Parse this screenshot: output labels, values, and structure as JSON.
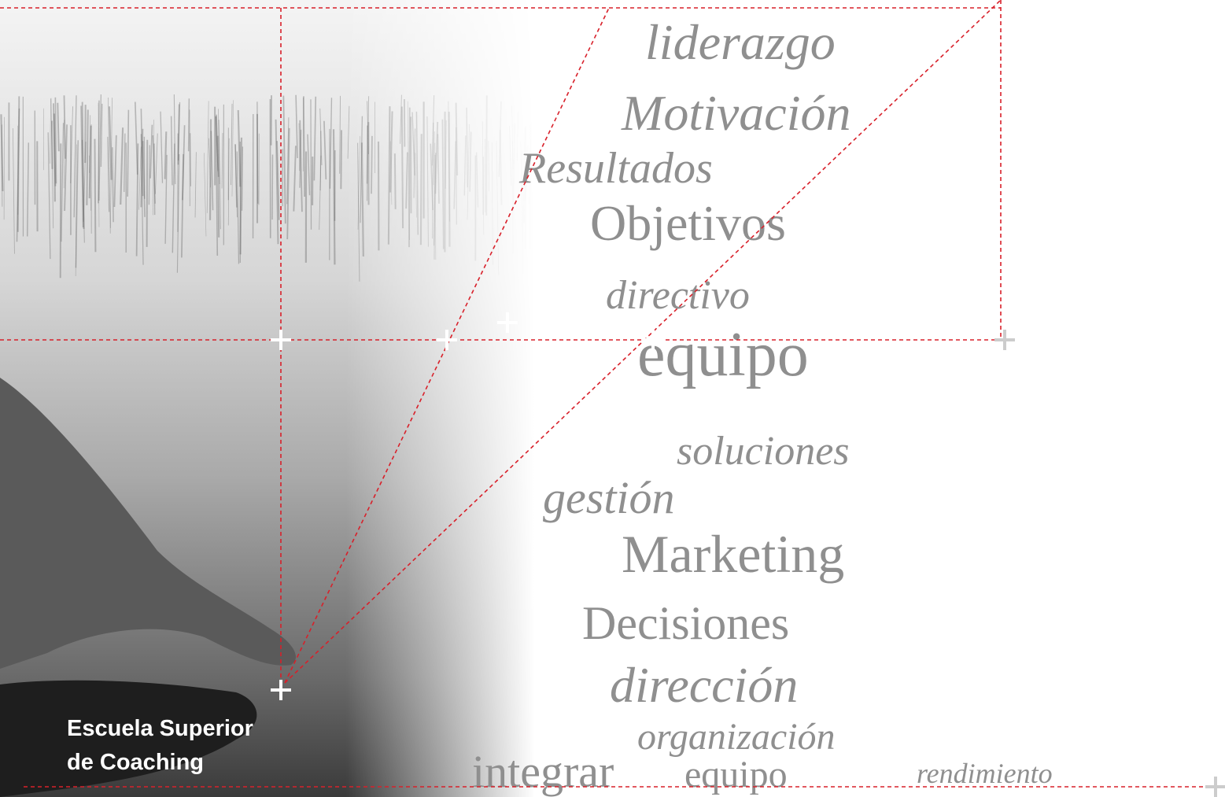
{
  "words": [
    "liderazgo",
    "Motivación",
    "Resultados",
    "Objetivos",
    "directivo",
    "equipo",
    "soluciones",
    "gestión",
    "Marketing",
    "Decisiones",
    "dirección",
    "organización",
    "integrar",
    "equipo",
    "rendimiento"
  ],
  "brand": {
    "line1": "Escuela Superior",
    "line2": "de Coaching"
  }
}
